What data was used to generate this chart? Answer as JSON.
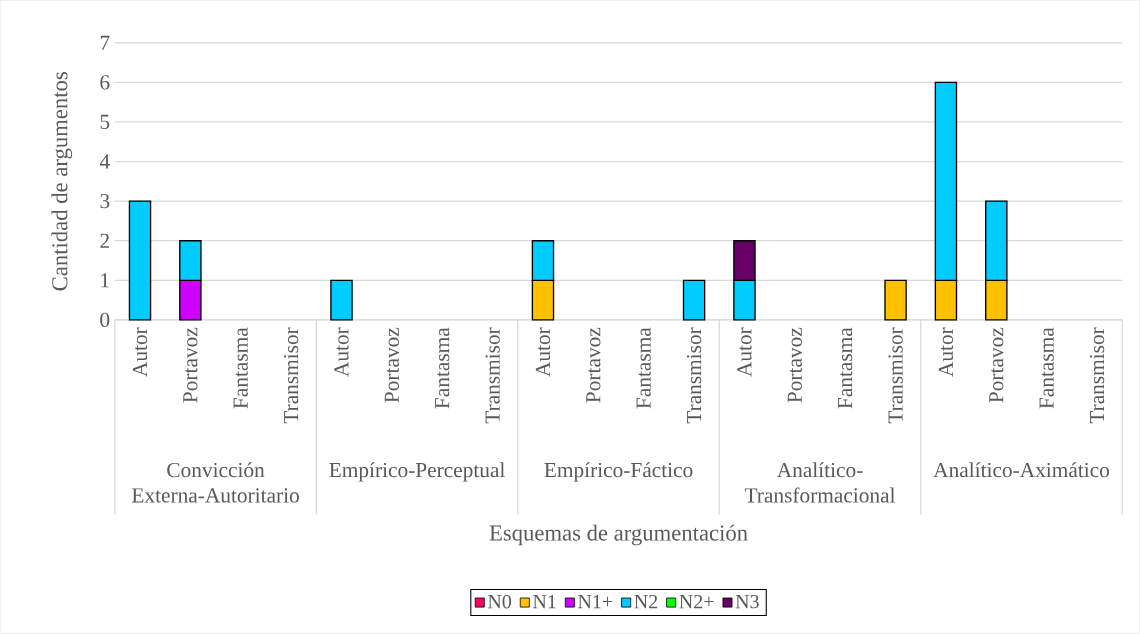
{
  "chart_data": {
    "type": "bar",
    "stacked": true,
    "xlabel": "Esquemas de argumentación",
    "ylabel": "Cantidad de argumentos",
    "categories": [
      "Autor",
      "Portavoz",
      "Fantasma",
      "Transmisor",
      "Autor",
      "Portavoz",
      "Fantasma",
      "Transmisor",
      "Autor",
      "Portavoz",
      "Fantasma",
      "Transmisor",
      "Autor",
      "Portavoz",
      "Fantasma",
      "Transmisor",
      "Autor",
      "Portavoz",
      "Fantasma",
      "Transmisor"
    ],
    "annotations": [
      "Convicción Externa-Autoritario",
      "Empírico-Perceptual",
      "Empírico-Fáctico",
      "Analítico-Transformacional",
      "Analítico-Aximático"
    ],
    "series": [
      {
        "name": "N0",
        "color": "#ff0066",
        "values": [
          null,
          null,
          null,
          null,
          null,
          null,
          null,
          null,
          null,
          null,
          null,
          null,
          null,
          null,
          null,
          null,
          null,
          null,
          null,
          null
        ]
      },
      {
        "name": "N1",
        "color": "#ffc000",
        "values": [
          null,
          null,
          null,
          null,
          null,
          null,
          null,
          null,
          1,
          null,
          null,
          null,
          null,
          null,
          null,
          1,
          1,
          1,
          null,
          null
        ]
      },
      {
        "name": "N1+",
        "color": "#cc00ff",
        "values": [
          null,
          1,
          null,
          null,
          null,
          null,
          null,
          null,
          null,
          null,
          null,
          null,
          null,
          null,
          null,
          null,
          null,
          null,
          null,
          null
        ]
      },
      {
        "name": "N2",
        "color": "#00ccff",
        "values": [
          3,
          1,
          null,
          null,
          1,
          null,
          null,
          null,
          1,
          null,
          null,
          1,
          1,
          null,
          null,
          null,
          5,
          2,
          null,
          null
        ]
      },
      {
        "name": "N2+",
        "color": "#00ff00",
        "values": [
          null,
          null,
          null,
          null,
          null,
          null,
          null,
          null,
          null,
          null,
          null,
          null,
          null,
          null,
          null,
          null,
          null,
          null,
          null,
          null
        ]
      },
      {
        "name": "N3",
        "color": "#660066",
        "values": [
          null,
          null,
          null,
          null,
          null,
          null,
          null,
          null,
          null,
          null,
          null,
          null,
          1,
          null,
          null,
          null,
          null,
          null,
          null,
          null
        ]
      }
    ],
    "ylim": [
      0,
      7
    ],
    "yticks": [
      0,
      1,
      2,
      3,
      4,
      5,
      6,
      7
    ],
    "grid": "y",
    "legend": "bottom"
  }
}
